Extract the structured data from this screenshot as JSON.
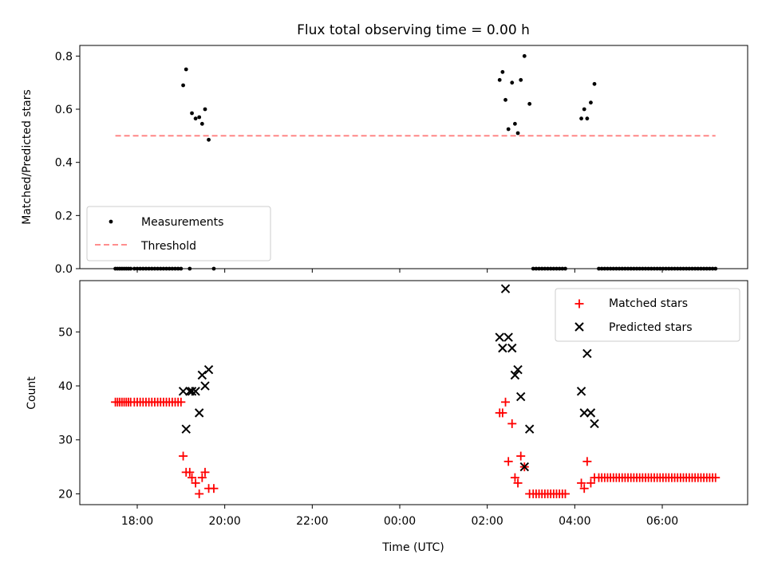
{
  "chart_data": [
    {
      "type": "scatter",
      "title": "Flux total observing time = 0.00 h",
      "xlabel": "",
      "ylabel": "Matched/Predicted stars",
      "x_unit": "hours_since_2024_00:00_from_previous_day_start_as_clock_time",
      "ylim": [
        0,
        0.84
      ],
      "yticks": [
        0.0,
        0.2,
        0.4,
        0.6,
        0.8
      ],
      "ytick_labels": [
        "0.0",
        "0.2",
        "0.4",
        "0.6",
        "0.8"
      ],
      "legend": {
        "position": "lower-left",
        "entries": [
          "Measurements",
          "Threshold"
        ]
      },
      "series": [
        {
          "name": "Measurements",
          "marker": "dot",
          "color": "#000000",
          "points": [
            [
              "17:30",
              0
            ],
            [
              "17:33",
              0
            ],
            [
              "17:36",
              0
            ],
            [
              "17:39",
              0
            ],
            [
              "17:42",
              0
            ],
            [
              "17:45",
              0
            ],
            [
              "17:48",
              0
            ],
            [
              "17:51",
              0
            ],
            [
              "17:56",
              0
            ],
            [
              "18:00",
              0
            ],
            [
              "18:04",
              0
            ],
            [
              "18:08",
              0
            ],
            [
              "18:12",
              0
            ],
            [
              "18:16",
              0
            ],
            [
              "18:20",
              0
            ],
            [
              "18:24",
              0
            ],
            [
              "18:28",
              0
            ],
            [
              "18:32",
              0
            ],
            [
              "18:36",
              0
            ],
            [
              "18:40",
              0
            ],
            [
              "18:44",
              0
            ],
            [
              "18:48",
              0
            ],
            [
              "18:52",
              0
            ],
            [
              "18:56",
              0
            ],
            [
              "19:00",
              0
            ],
            [
              "19:03",
              0.69
            ],
            [
              "19:07",
              0.75
            ],
            [
              "19:12",
              0
            ],
            [
              "19:15",
              0.585
            ],
            [
              "19:20",
              0.565
            ],
            [
              "19:25",
              0.57
            ],
            [
              "19:29",
              0.545
            ],
            [
              "19:33",
              0.6
            ],
            [
              "19:38",
              0.485
            ],
            [
              "19:45",
              0
            ],
            [
              "02:17",
              0.71
            ],
            [
              "02:21",
              0.74
            ],
            [
              "02:25",
              0.635
            ],
            [
              "02:29",
              0.525
            ],
            [
              "02:34",
              0.7
            ],
            [
              "02:38",
              0.545
            ],
            [
              "02:42",
              0.51
            ],
            [
              "02:46",
              0.71
            ],
            [
              "02:51",
              0.8
            ],
            [
              "02:58",
              0.62
            ],
            [
              "03:03",
              0
            ],
            [
              "03:07",
              0
            ],
            [
              "03:11",
              0
            ],
            [
              "03:15",
              0
            ],
            [
              "03:19",
              0
            ],
            [
              "03:23",
              0
            ],
            [
              "03:27",
              0
            ],
            [
              "03:31",
              0
            ],
            [
              "03:35",
              0
            ],
            [
              "03:39",
              0
            ],
            [
              "03:43",
              0
            ],
            [
              "03:47",
              0
            ],
            [
              "04:09",
              0.565
            ],
            [
              "04:13",
              0.6
            ],
            [
              "04:17",
              0.565
            ],
            [
              "04:22",
              0.625
            ],
            [
              "04:27",
              0.695
            ],
            [
              "04:33",
              0
            ],
            [
              "04:37",
              0
            ],
            [
              "04:41",
              0
            ],
            [
              "04:45",
              0
            ],
            [
              "04:49",
              0
            ],
            [
              "04:53",
              0
            ],
            [
              "04:57",
              0
            ],
            [
              "05:01",
              0
            ],
            [
              "05:05",
              0
            ],
            [
              "05:09",
              0
            ],
            [
              "05:13",
              0
            ],
            [
              "05:17",
              0
            ],
            [
              "05:21",
              0
            ],
            [
              "05:25",
              0
            ],
            [
              "05:29",
              0
            ],
            [
              "05:33",
              0
            ],
            [
              "05:37",
              0
            ],
            [
              "05:41",
              0
            ],
            [
              "05:45",
              0
            ],
            [
              "05:49",
              0
            ],
            [
              "05:53",
              0
            ],
            [
              "05:57",
              0
            ],
            [
              "06:01",
              0
            ],
            [
              "06:05",
              0
            ],
            [
              "06:09",
              0
            ],
            [
              "06:13",
              0
            ],
            [
              "06:17",
              0
            ],
            [
              "06:21",
              0
            ],
            [
              "06:25",
              0
            ],
            [
              "06:29",
              0
            ],
            [
              "06:33",
              0
            ],
            [
              "06:37",
              0
            ],
            [
              "06:41",
              0
            ],
            [
              "06:45",
              0
            ],
            [
              "06:49",
              0
            ],
            [
              "06:53",
              0
            ],
            [
              "06:57",
              0
            ],
            [
              "07:01",
              0
            ],
            [
              "07:05",
              0
            ],
            [
              "07:09",
              0
            ],
            [
              "07:13",
              0
            ]
          ]
        },
        {
          "name": "Threshold",
          "style": "dashed",
          "color": "#ff7f7f",
          "points": [
            [
              "17:30",
              0.5
            ],
            [
              "07:13",
              0.5
            ]
          ]
        }
      ]
    },
    {
      "type": "scatter",
      "title": "",
      "xlabel": "Time (UTC)",
      "ylabel": "Count",
      "ylim": [
        18,
        59.5
      ],
      "yticks": [
        20,
        30,
        40,
        50
      ],
      "ytick_labels": [
        "20",
        "30",
        "40",
        "50"
      ],
      "xticks": [
        "18:00",
        "20:00",
        "22:00",
        "00:00",
        "02:00",
        "04:00",
        "06:00"
      ],
      "legend": {
        "position": "top-right",
        "entries": [
          "Matched stars",
          "Predicted stars"
        ]
      },
      "series": [
        {
          "name": "Matched stars",
          "marker": "plus",
          "color": "#ff0000",
          "points": [
            [
              "17:30",
              37
            ],
            [
              "17:33",
              37
            ],
            [
              "17:36",
              37
            ],
            [
              "17:39",
              37
            ],
            [
              "17:42",
              37
            ],
            [
              "17:45",
              37
            ],
            [
              "17:48",
              37
            ],
            [
              "17:51",
              37
            ],
            [
              "17:56",
              37
            ],
            [
              "18:00",
              37
            ],
            [
              "18:04",
              37
            ],
            [
              "18:08",
              37
            ],
            [
              "18:12",
              37
            ],
            [
              "18:16",
              37
            ],
            [
              "18:20",
              37
            ],
            [
              "18:24",
              37
            ],
            [
              "18:28",
              37
            ],
            [
              "18:32",
              37
            ],
            [
              "18:36",
              37
            ],
            [
              "18:40",
              37
            ],
            [
              "18:44",
              37
            ],
            [
              "18:48",
              37
            ],
            [
              "18:52",
              37
            ],
            [
              "18:56",
              37
            ],
            [
              "19:00",
              37
            ],
            [
              "19:03",
              27
            ],
            [
              "19:07",
              24
            ],
            [
              "19:12",
              24
            ],
            [
              "19:15",
              23
            ],
            [
              "19:20",
              22
            ],
            [
              "19:25",
              20
            ],
            [
              "19:29",
              23
            ],
            [
              "19:33",
              24
            ],
            [
              "19:38",
              21
            ],
            [
              "19:45",
              21
            ],
            [
              "02:17",
              35
            ],
            [
              "02:21",
              35
            ],
            [
              "02:25",
              37
            ],
            [
              "02:29",
              26
            ],
            [
              "02:34",
              33
            ],
            [
              "02:38",
              23
            ],
            [
              "02:42",
              22
            ],
            [
              "02:46",
              27
            ],
            [
              "02:51",
              25
            ],
            [
              "02:58",
              20
            ],
            [
              "03:03",
              20
            ],
            [
              "03:07",
              20
            ],
            [
              "03:11",
              20
            ],
            [
              "03:15",
              20
            ],
            [
              "03:19",
              20
            ],
            [
              "03:23",
              20
            ],
            [
              "03:27",
              20
            ],
            [
              "03:31",
              20
            ],
            [
              "03:35",
              20
            ],
            [
              "03:39",
              20
            ],
            [
              "03:43",
              20
            ],
            [
              "03:47",
              20
            ],
            [
              "04:09",
              22
            ],
            [
              "04:13",
              21
            ],
            [
              "04:17",
              26
            ],
            [
              "04:22",
              22
            ],
            [
              "04:27",
              23
            ],
            [
              "04:33",
              23
            ],
            [
              "04:37",
              23
            ],
            [
              "04:41",
              23
            ],
            [
              "04:45",
              23
            ],
            [
              "04:49",
              23
            ],
            [
              "04:53",
              23
            ],
            [
              "04:57",
              23
            ],
            [
              "05:01",
              23
            ],
            [
              "05:05",
              23
            ],
            [
              "05:09",
              23
            ],
            [
              "05:13",
              23
            ],
            [
              "05:17",
              23
            ],
            [
              "05:21",
              23
            ],
            [
              "05:25",
              23
            ],
            [
              "05:29",
              23
            ],
            [
              "05:33",
              23
            ],
            [
              "05:37",
              23
            ],
            [
              "05:41",
              23
            ],
            [
              "05:45",
              23
            ],
            [
              "05:49",
              23
            ],
            [
              "05:53",
              23
            ],
            [
              "05:57",
              23
            ],
            [
              "06:01",
              23
            ],
            [
              "06:05",
              23
            ],
            [
              "06:09",
              23
            ],
            [
              "06:13",
              23
            ],
            [
              "06:17",
              23
            ],
            [
              "06:21",
              23
            ],
            [
              "06:25",
              23
            ],
            [
              "06:29",
              23
            ],
            [
              "06:33",
              23
            ],
            [
              "06:37",
              23
            ],
            [
              "06:41",
              23
            ],
            [
              "06:45",
              23
            ],
            [
              "06:49",
              23
            ],
            [
              "06:53",
              23
            ],
            [
              "06:57",
              23
            ],
            [
              "07:01",
              23
            ],
            [
              "07:05",
              23
            ],
            [
              "07:09",
              23
            ],
            [
              "07:13",
              23
            ]
          ]
        },
        {
          "name": "Predicted stars",
          "marker": "x",
          "color": "#000000",
          "points": [
            [
              "19:03",
              39
            ],
            [
              "19:07",
              32
            ],
            [
              "19:12",
              39
            ],
            [
              "19:15",
              39
            ],
            [
              "19:20",
              39
            ],
            [
              "19:25",
              35
            ],
            [
              "19:29",
              42
            ],
            [
              "19:33",
              40
            ],
            [
              "19:38",
              43
            ],
            [
              "02:17",
              49
            ],
            [
              "02:21",
              47
            ],
            [
              "02:25",
              58
            ],
            [
              "02:29",
              49
            ],
            [
              "02:34",
              47
            ],
            [
              "02:38",
              42
            ],
            [
              "02:42",
              43
            ],
            [
              "02:46",
              38
            ],
            [
              "02:51",
              25
            ],
            [
              "02:58",
              32
            ],
            [
              "04:09",
              39
            ],
            [
              "04:13",
              35
            ],
            [
              "04:17",
              46
            ],
            [
              "04:22",
              35
            ],
            [
              "04:27",
              33
            ]
          ]
        }
      ]
    }
  ]
}
